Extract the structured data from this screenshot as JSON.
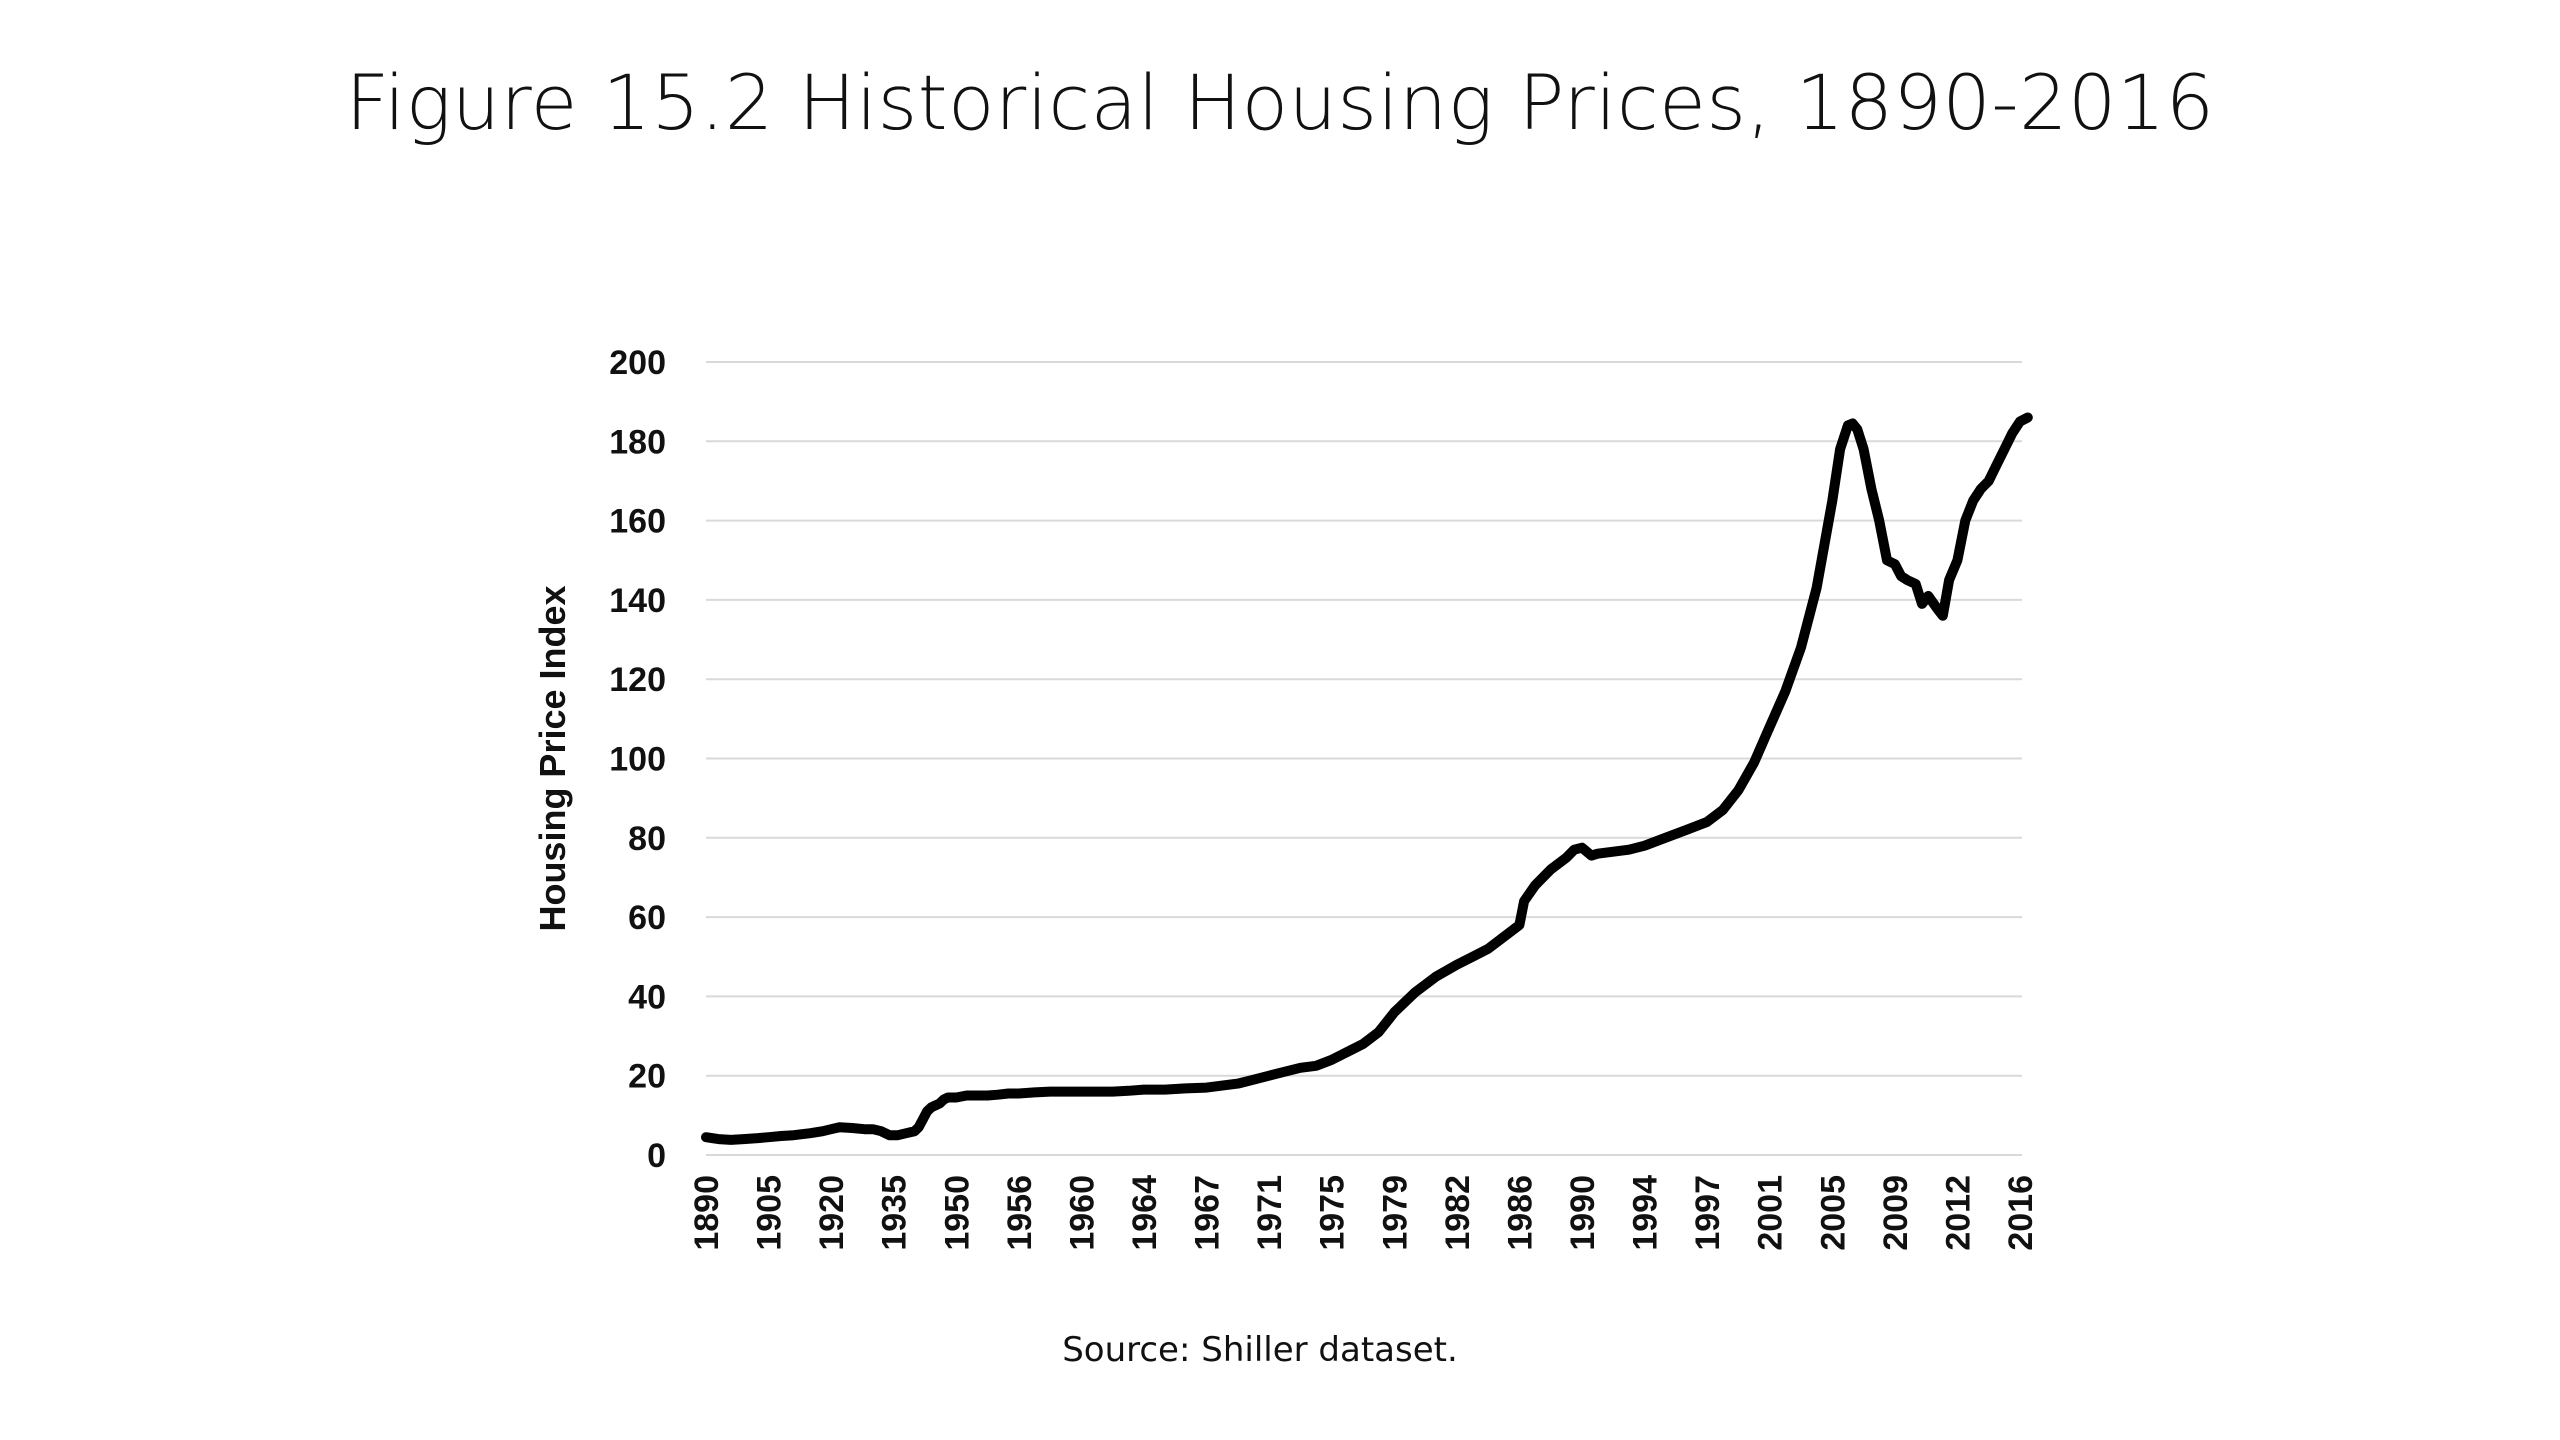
{
  "slide": {
    "title": "Figure 15.2 Historical Housing Prices, 1890-2016",
    "source": "Source: Shiller dataset."
  },
  "chart_data": {
    "type": "line",
    "title": "",
    "xlabel": "",
    "ylabel": "Housing Price Index",
    "ylim": [
      0,
      200
    ],
    "yticks": [
      0,
      20,
      40,
      60,
      80,
      100,
      120,
      140,
      160,
      180,
      200
    ],
    "xtick_labels": [
      "1890",
      "1905",
      "1920",
      "1935",
      "1950",
      "1956",
      "1960",
      "1964",
      "1967",
      "1971",
      "1975",
      "1979",
      "1982",
      "1986",
      "1990",
      "1994",
      "1997",
      "2001",
      "2005",
      "2009",
      "2012",
      "2016"
    ],
    "grid": "horizontal",
    "legend": "none",
    "series_color": "#000000",
    "series": [
      {
        "x": [
          1890,
          1893,
          1896,
          1899,
          1902,
          1905,
          1908,
          1911,
          1915,
          1918,
          1920,
          1922,
          1925,
          1928,
          1930,
          1932,
          1934,
          1936,
          1938,
          1940,
          1941,
          1942,
          1943,
          1944,
          1945,
          1946,
          1947,
          1948,
          1949,
          1950,
          1951,
          1952,
          1953,
          1954,
          1955,
          1956,
          1957,
          1958,
          1959,
          1960,
          1961,
          1962,
          1963,
          1964,
          1965,
          1966,
          1967,
          1968,
          1969,
          1970,
          1971,
          1972,
          1973,
          1974,
          1975,
          1976,
          1977,
          1978,
          1979,
          1980,
          1981,
          1982,
          1983,
          1984,
          1985,
          1986,
          1986.3,
          1987,
          1988,
          1989,
          1989.5,
          1990,
          1990.6,
          1991,
          1992,
          1993,
          1994,
          1995,
          1996,
          1997,
          1998,
          1999,
          2000,
          2001,
          2002,
          2003,
          2004,
          2005,
          2005.5,
          2006,
          2006.3,
          2006.6,
          2007,
          2007.5,
          2008,
          2008.5,
          2009,
          2009.3,
          2009.6,
          2010,
          2010.3,
          2010.6,
          2011,
          2011.3,
          2011.6,
          2012,
          2012.5,
          2013,
          2013.5,
          2014,
          2014.5,
          2015,
          2015.5,
          2016,
          2016.5
        ],
        "y": [
          4.5,
          4,
          3.8,
          4,
          4.2,
          4.5,
          4.8,
          5,
          5.5,
          6,
          6.5,
          7,
          6.8,
          6.5,
          6.5,
          6,
          5,
          5,
          5.5,
          6,
          7,
          9,
          11,
          12,
          12.5,
          13,
          14,
          14.5,
          14.5,
          14.5,
          15,
          15,
          15,
          15.2,
          15.5,
          15.5,
          15.8,
          16,
          16,
          16,
          16,
          16,
          16.2,
          16.5,
          16.5,
          16.8,
          17,
          17.5,
          18,
          19,
          20,
          21,
          22,
          22.5,
          24,
          26,
          28,
          31,
          36,
          41,
          45,
          48,
          50,
          52,
          55,
          58,
          64,
          68,
          72,
          75,
          77,
          77.5,
          75.5,
          76,
          76.5,
          77,
          78,
          80,
          82,
          84,
          87,
          92,
          99,
          108,
          117,
          128,
          143,
          165,
          178,
          184,
          184.5,
          183,
          178,
          168,
          160,
          150,
          149,
          146,
          145,
          144,
          139,
          141,
          138,
          136,
          145,
          150,
          160,
          165,
          168,
          170,
          174,
          178,
          182,
          185,
          186
        ]
      }
    ]
  }
}
